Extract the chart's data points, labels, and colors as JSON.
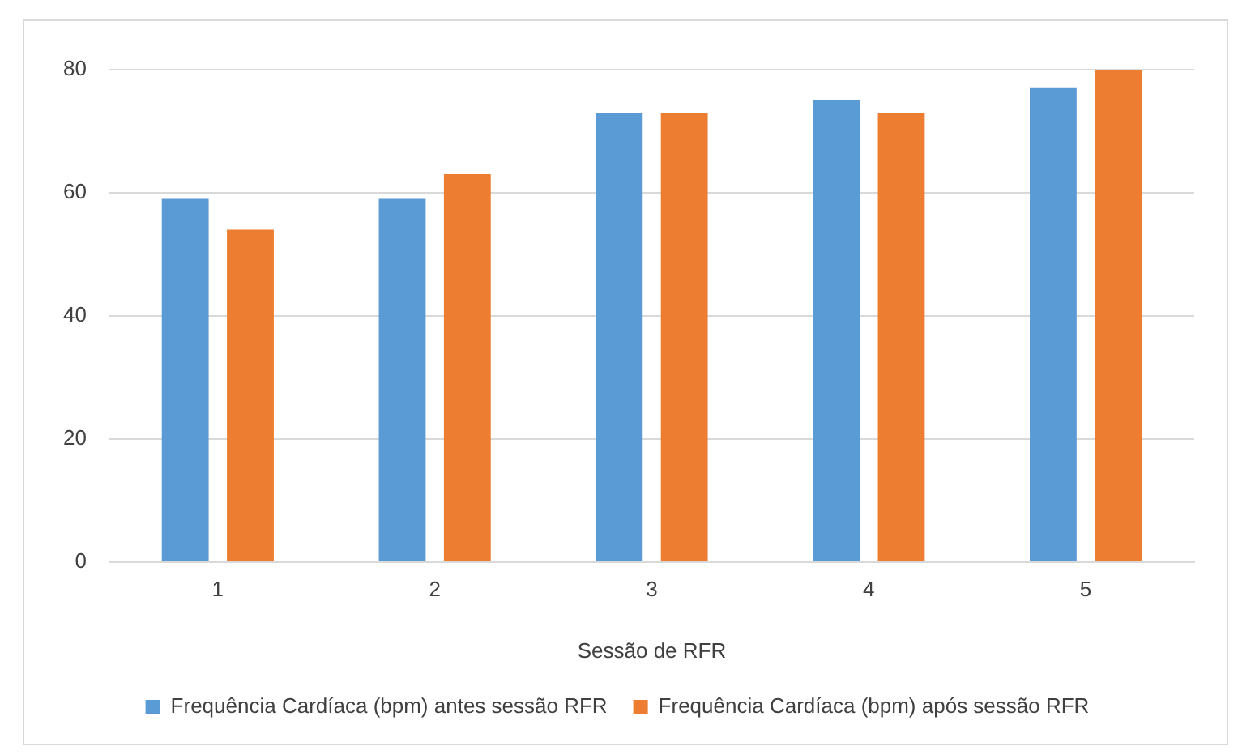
{
  "chart_data": {
    "type": "bar",
    "xlabel": "Sessão de RFR",
    "categories": [
      "1",
      "2",
      "3",
      "4",
      "5"
    ],
    "series": [
      {
        "name": "Frequência Cardíaca (bpm) antes sessão RFR",
        "color": "#5b9bd5",
        "values": [
          59,
          59,
          73,
          75,
          77
        ]
      },
      {
        "name": "Frequência Cardíaca (bpm) após sessão RFR",
        "color": "#ed7d31",
        "values": [
          54,
          63,
          73,
          73,
          80
        ]
      }
    ],
    "ylim": [
      0,
      80
    ],
    "yticks": [
      0,
      20,
      40,
      60,
      80
    ],
    "grid": "y",
    "legend": "bottom"
  }
}
